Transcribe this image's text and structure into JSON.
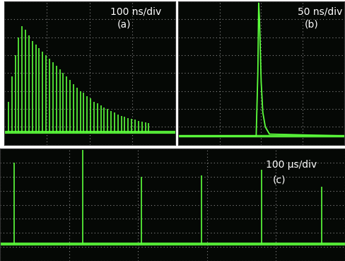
{
  "chart_data": [
    {
      "type": "stem",
      "title": "100 ns/div",
      "subtitle": "(a)",
      "color": "#5cff3c",
      "x": [
        10,
        18,
        26,
        34,
        42,
        50,
        58,
        66,
        74,
        82,
        90,
        98,
        106,
        114,
        122,
        130,
        138,
        146,
        154,
        162,
        170,
        178,
        186,
        194,
        202,
        210,
        218,
        226,
        234,
        242,
        250,
        258,
        266,
        274,
        282,
        290,
        298,
        306,
        314,
        322,
        330,
        338
      ],
      "values": [
        2.4,
        3.8,
        5.0,
        6.0,
        6.6,
        6.4,
        6.1,
        5.8,
        5.6,
        5.4,
        5.2,
        5.0,
        4.8,
        4.6,
        4.4,
        4.2,
        4.0,
        3.8,
        3.6,
        3.4,
        3.2,
        3.0,
        2.9,
        2.7,
        2.6,
        2.4,
        2.3,
        2.2,
        2.1,
        2.0,
        1.9,
        1.8,
        1.7,
        1.6,
        1.55,
        1.5,
        1.45,
        1.4,
        1.35,
        1.3,
        1.25,
        1.2
      ],
      "baseline": 0.7,
      "xlim": [
        0,
        400
      ],
      "xticks": [
        0,
        100,
        200,
        300,
        400
      ],
      "ylim": [
        0,
        8
      ],
      "yticks": [
        0,
        1,
        2,
        3,
        4,
        5,
        6,
        7,
        8
      ],
      "grid": true,
      "tick_labels": false
    },
    {
      "type": "line",
      "title": "50 ns/div",
      "subtitle": "(b)",
      "color": "#5cff3c",
      "x": [
        0,
        94,
        96,
        97,
        98,
        100,
        102,
        105,
        110,
        200
      ],
      "values": [
        0.5,
        0.5,
        4.0,
        7.9,
        7.0,
        3.5,
        1.8,
        1.0,
        0.6,
        0.5
      ],
      "xlim": [
        0,
        200
      ],
      "xticks": [
        0,
        50,
        100,
        150,
        200
      ],
      "ylim": [
        0,
        8
      ],
      "yticks": [
        0,
        1,
        2,
        3,
        4,
        5,
        6,
        7,
        8
      ],
      "grid": true,
      "tick_labels": false
    },
    {
      "type": "stem",
      "title": "100 μs/div",
      "subtitle": "(c)",
      "color": "#5cff3c",
      "x": [
        20,
        120,
        205,
        292,
        379,
        466
      ],
      "values": [
        7.0,
        7.9,
        6.0,
        6.1,
        6.5,
        5.3
      ],
      "baseline": 1.2,
      "xlim": [
        0,
        500
      ],
      "xticks": [
        0,
        100,
        200,
        300,
        400,
        500
      ],
      "ylim": [
        0,
        8
      ],
      "yticks": [
        0,
        1,
        2,
        3,
        4,
        5,
        6,
        7,
        8
      ],
      "grid": true,
      "tick_labels": false
    }
  ]
}
